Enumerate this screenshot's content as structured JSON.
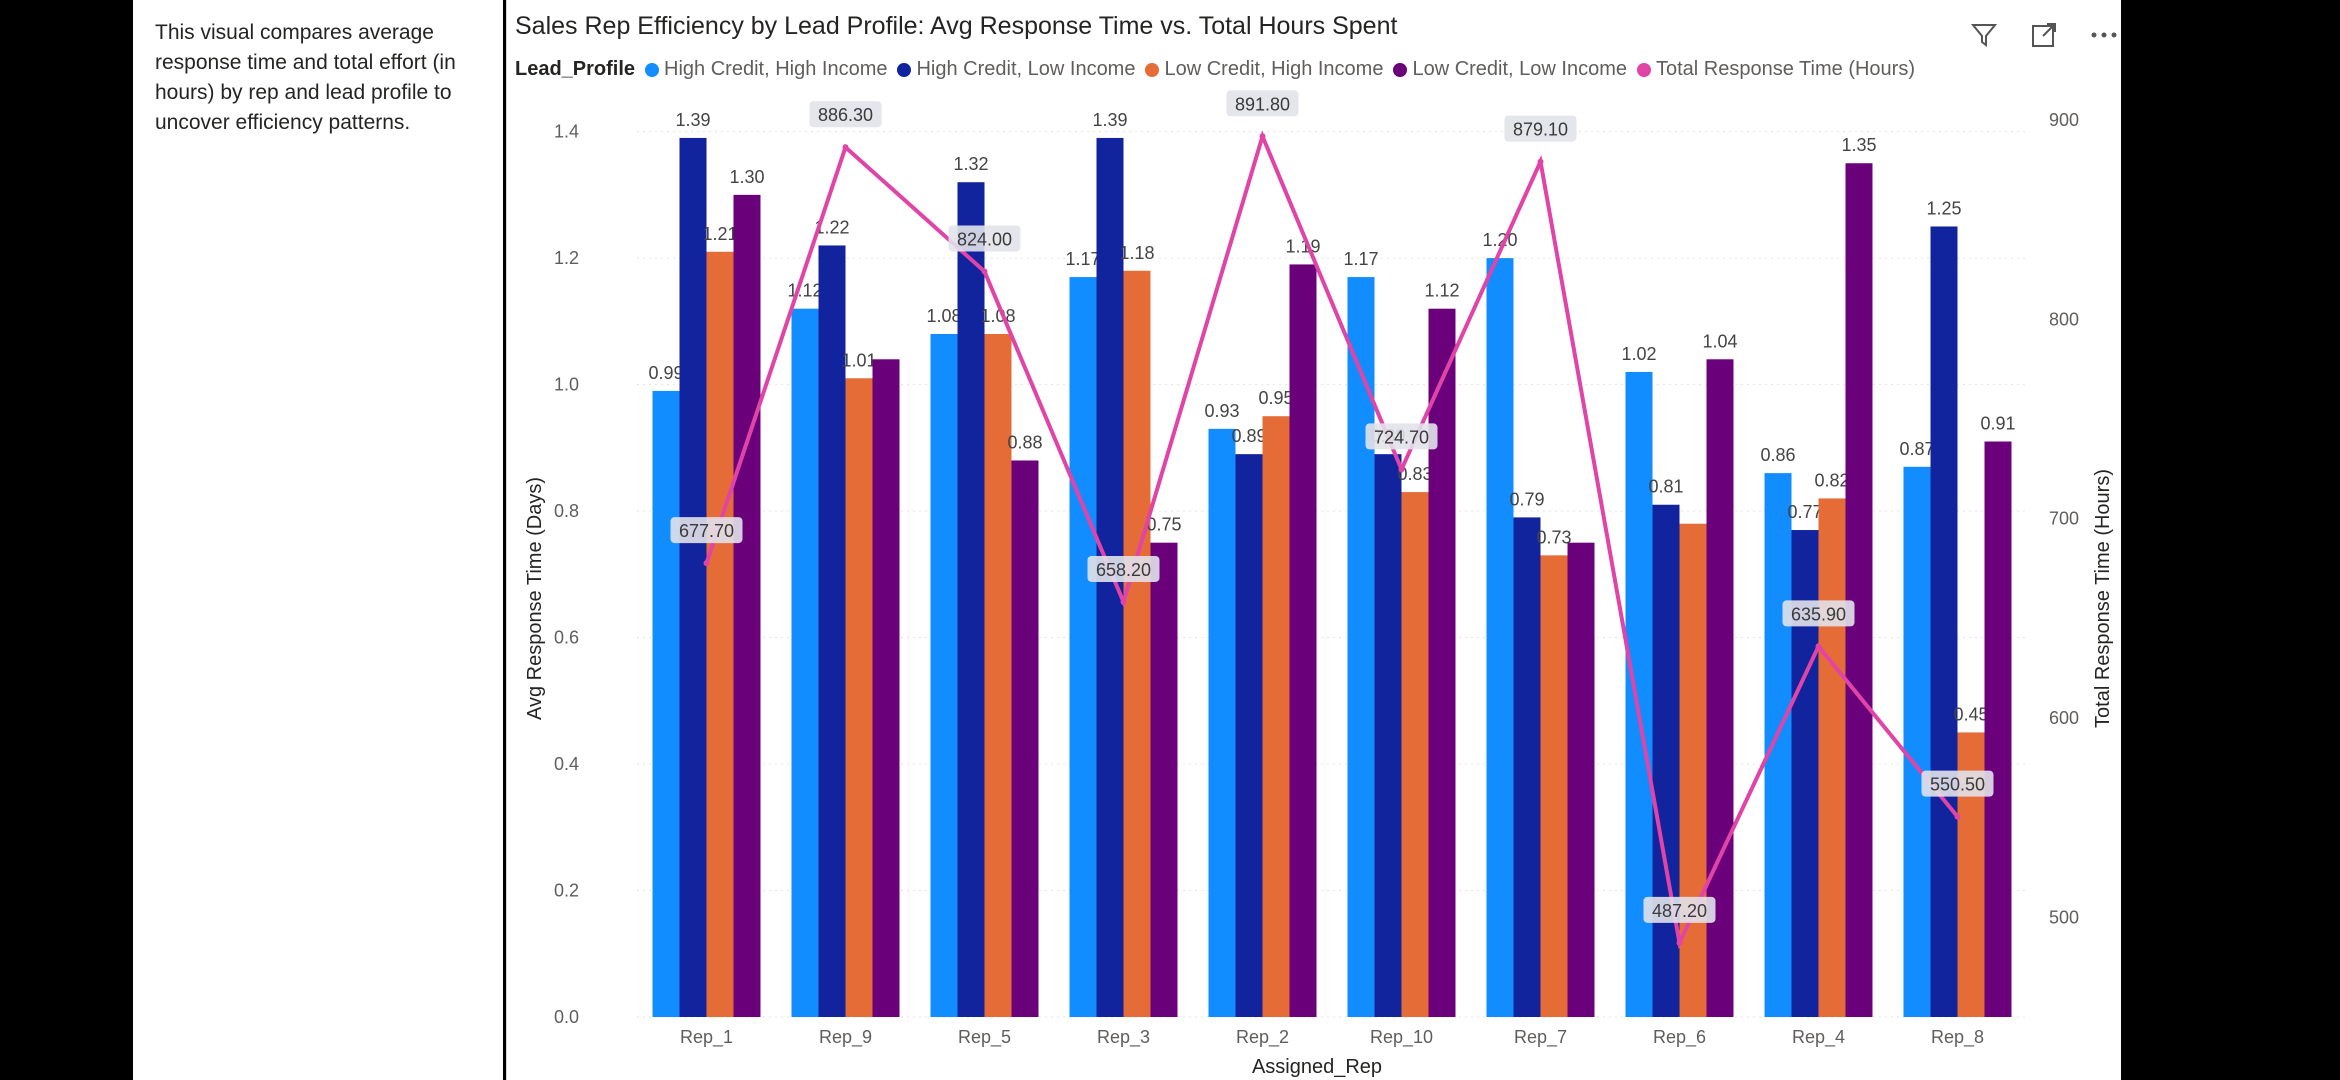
{
  "side_note": {
    "text": "This visual compares average response time and total effort (in hours) by rep and lead profile to uncover efficiency patterns."
  },
  "visual": {
    "title": "Sales Rep Efficiency by Lead Profile: Avg Response Time vs. Total Hours Spent",
    "toolbar": [
      {
        "name": "filter-icon",
        "glyph": "⛉"
      },
      {
        "name": "focus-mode-icon",
        "glyph": "⤢"
      },
      {
        "name": "more-options-icon",
        "glyph": "⋯"
      }
    ]
  },
  "legend": {
    "title": "Lead_Profile",
    "items": [
      {
        "label": "High Credit, High Income",
        "color": "#118dff"
      },
      {
        "label": "High Credit, Low Income",
        "color": "#12239e"
      },
      {
        "label": "Low Credit, High Income",
        "color": "#e66c37"
      },
      {
        "label": "Low Credit, Low Income",
        "color": "#6b007b"
      },
      {
        "label": "Total Response Time (Hours)",
        "color": "#e044a7"
      }
    ]
  },
  "chart_data": {
    "type": "bar",
    "title": "Sales Rep Efficiency by Lead Profile: Avg Response Time vs. Total Hours Spent",
    "xlabel": "Assigned_Rep",
    "ylabel": "Avg Response Time (Days)",
    "y2label": "Total Response Time (Hours)",
    "ylim": [
      0,
      1.45
    ],
    "y2lim": [
      450,
      910
    ],
    "yticks": [
      "0.0",
      "0.2",
      "0.4",
      "0.6",
      "0.8",
      "1.0",
      "1.2",
      "1.4"
    ],
    "y2ticks": [
      "500",
      "600",
      "700",
      "800",
      "900"
    ],
    "grid": true,
    "legend_position": "top-left",
    "categories": [
      "Rep_1",
      "Rep_9",
      "Rep_5",
      "Rep_3",
      "Rep_2",
      "Rep_10",
      "Rep_7",
      "Rep_6",
      "Rep_4",
      "Rep_8"
    ],
    "series": [
      {
        "name": "High Credit, High Income",
        "color": "#118dff",
        "values": [
          0.99,
          1.12,
          1.08,
          1.17,
          0.93,
          1.17,
          1.2,
          1.02,
          0.86,
          0.87
        ],
        "labels": [
          "0.99",
          "1.12",
          "1.08",
          "1.17",
          "0.93",
          "1.17",
          "1.20",
          "1.02",
          "0.86",
          "0.87"
        ]
      },
      {
        "name": "High Credit, Low Income",
        "color": "#12239e",
        "values": [
          1.39,
          1.22,
          1.32,
          1.39,
          0.89,
          0.89,
          0.79,
          0.81,
          0.77,
          1.25
        ],
        "labels": [
          "1.39",
          "1.22",
          "1.32",
          "1.39",
          "0.89",
          "0.89",
          "0.79",
          "0.81",
          "0.77",
          "1.25"
        ]
      },
      {
        "name": "Low Credit, High Income",
        "color": "#e66c37",
        "values": [
          1.21,
          1.01,
          1.08,
          1.18,
          0.95,
          0.83,
          0.73,
          0.78,
          0.82,
          0.45
        ],
        "labels": [
          "1.21",
          "1.01",
          "1.08",
          "1.18",
          "0.95",
          "0.83",
          "0.73",
          "",
          "0.82",
          "0.45"
        ]
      },
      {
        "name": "Low Credit, Low Income",
        "color": "#6b007b",
        "values": [
          1.3,
          1.04,
          0.88,
          0.75,
          1.19,
          1.12,
          0.75,
          1.04,
          1.35,
          0.91
        ],
        "labels": [
          "1.30",
          "",
          "0.88",
          "0.75",
          "1.19",
          "1.12",
          "",
          "1.04",
          "1.35",
          "0.91"
        ]
      }
    ],
    "line_series": {
      "name": "Total Response Time (Hours)",
      "color": "#e044a7",
      "axis": "secondary",
      "values": [
        677.7,
        886.3,
        824.0,
        658.2,
        891.8,
        724.7,
        879.1,
        487.2,
        635.9,
        550.5
      ],
      "labels": [
        "677.70",
        "886.30",
        "824.00",
        "658.20",
        "891.80",
        "724.70",
        "879.10",
        "487.20",
        "635.90",
        "550.50"
      ]
    }
  }
}
